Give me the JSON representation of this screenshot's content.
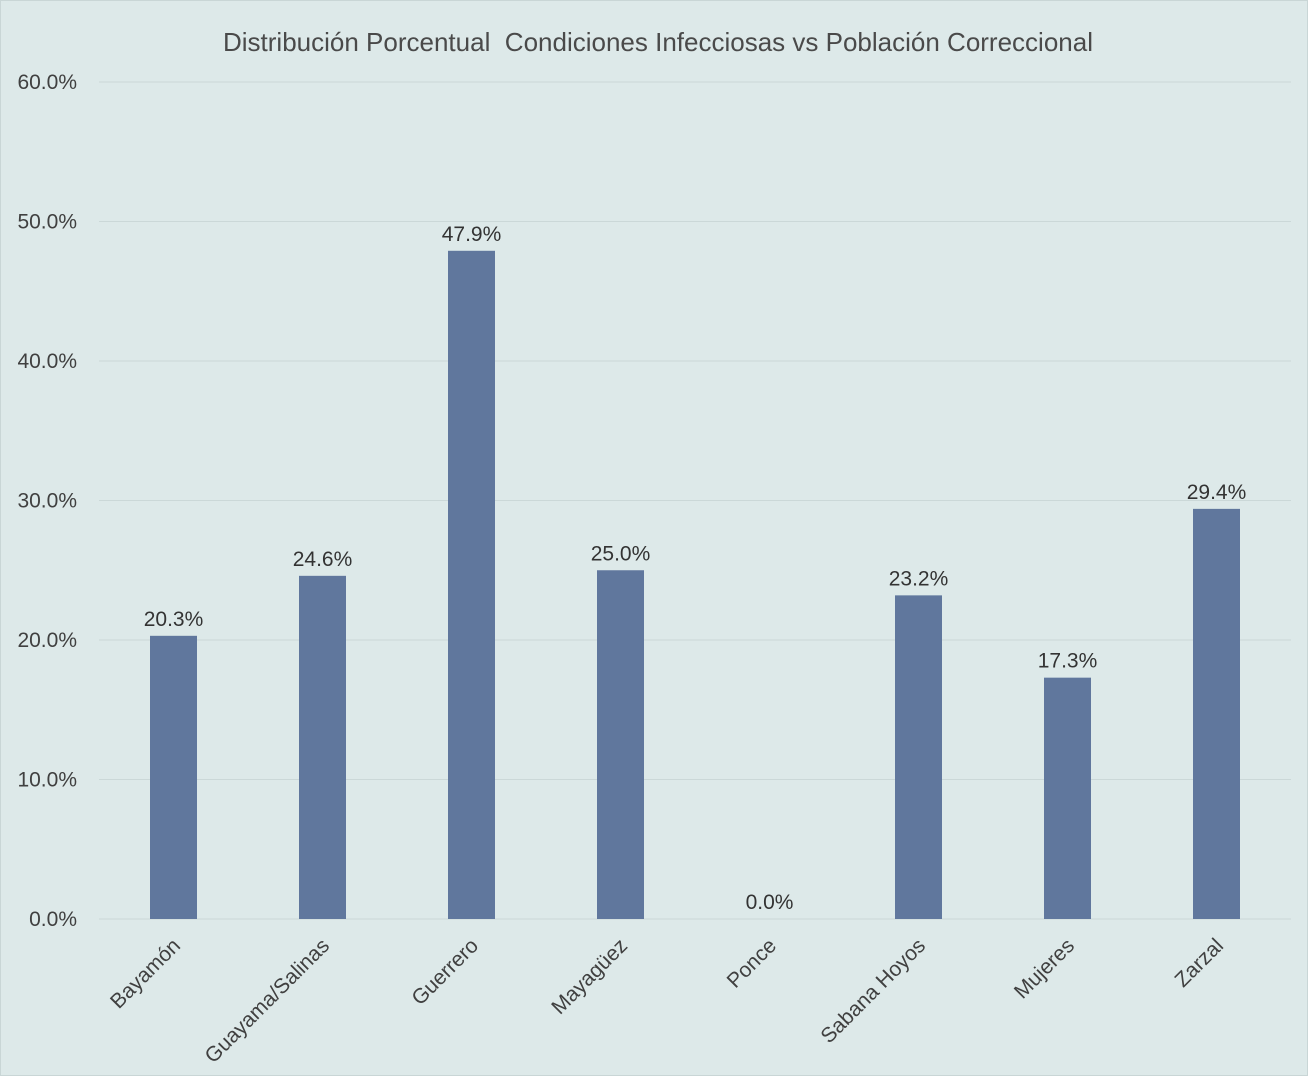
{
  "chart_data": {
    "type": "bar",
    "title": "Distribución Porcentual  Condiciones Infecciosas vs Población Correccional",
    "xlabel": "",
    "ylabel": "",
    "categories": [
      "Bayamón",
      "Guayama/Salinas",
      "Guerrero",
      "Mayagüez",
      "Ponce",
      "Sabana Hoyos",
      "Mujeres",
      "Zarzal"
    ],
    "values": [
      20.3,
      24.6,
      47.9,
      25.0,
      0.0,
      23.2,
      17.3,
      29.4
    ],
    "data_labels": [
      "20.3%",
      "24.6%",
      "47.9%",
      "25.0%",
      "0.0%",
      "23.2%",
      "17.3%",
      "29.4%"
    ],
    "ylim": [
      0,
      60
    ],
    "yticks": [
      0,
      10,
      20,
      30,
      40,
      50,
      60
    ],
    "ytick_labels": [
      "0.0%",
      "10.0%",
      "20.0%",
      "30.0%",
      "40.0%",
      "50.0%",
      "60.0%"
    ],
    "grid": true,
    "legend": "none",
    "colors": {
      "bar": "#60779d",
      "background": "#dde9e9",
      "gridline": "#cbd8d8",
      "text": "#404040"
    }
  }
}
